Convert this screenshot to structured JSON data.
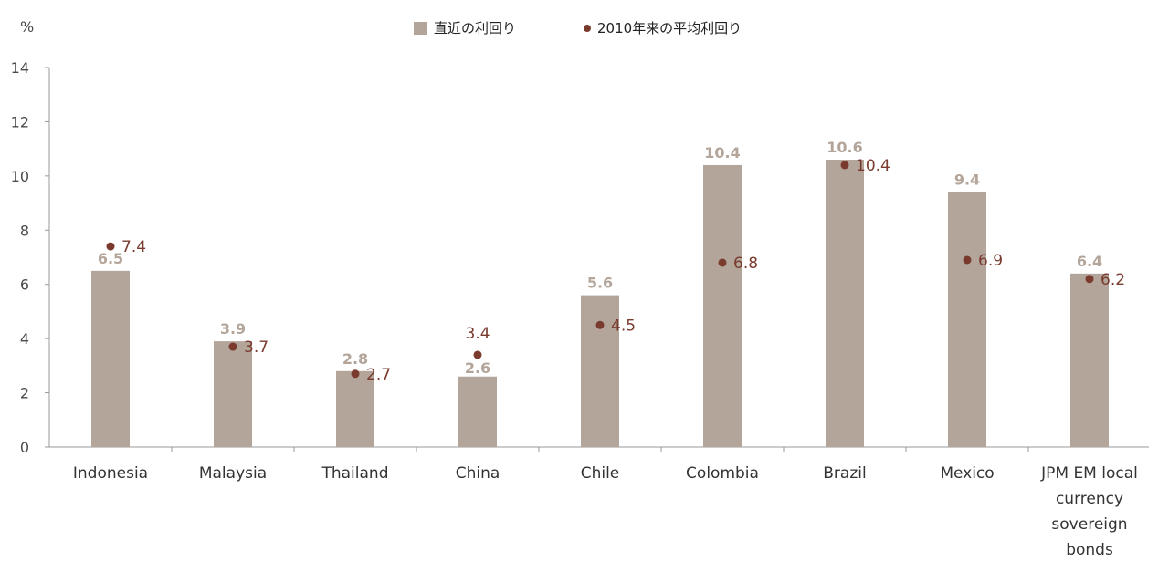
{
  "chart_data": {
    "type": "bar",
    "ylabel": "%",
    "ylim": [
      0,
      14
    ],
    "yticks": [
      "0",
      "2",
      "4",
      "6",
      "8",
      "10",
      "12",
      "14"
    ],
    "grid": false,
    "legend_position": "top",
    "categories": [
      [
        "Indonesia"
      ],
      [
        "Malaysia"
      ],
      [
        "Thailand"
      ],
      [
        "China"
      ],
      [
        "Chile"
      ],
      [
        "Colombia"
      ],
      [
        "Brazil"
      ],
      [
        "Mexico"
      ],
      [
        "JPM EM local",
        "currency",
        "sovereign",
        "bonds"
      ]
    ],
    "series": [
      {
        "name": "直近の利回り",
        "kind": "bar",
        "color": "#b3a59a",
        "label_color": "#b3a59a",
        "values": [
          6.5,
          3.9,
          2.8,
          2.6,
          5.6,
          10.4,
          10.6,
          9.4,
          6.4
        ],
        "labels": [
          "6.5",
          "3.9",
          "2.8",
          "2.6",
          "5.6",
          "10.4",
          "10.6",
          "9.4",
          "6.4"
        ]
      },
      {
        "name": "2010年来の平均利回り",
        "kind": "dot",
        "color": "#7a3b2e",
        "label_color": "#7a3b2e",
        "values": [
          7.4,
          3.7,
          2.7,
          3.4,
          4.5,
          6.8,
          10.4,
          6.9,
          6.2
        ],
        "labels": [
          "7.4",
          "3.7",
          "2.7",
          "3.4",
          "4.5",
          "6.8",
          "10.4",
          "6.9",
          "6.2"
        ]
      }
    ]
  }
}
